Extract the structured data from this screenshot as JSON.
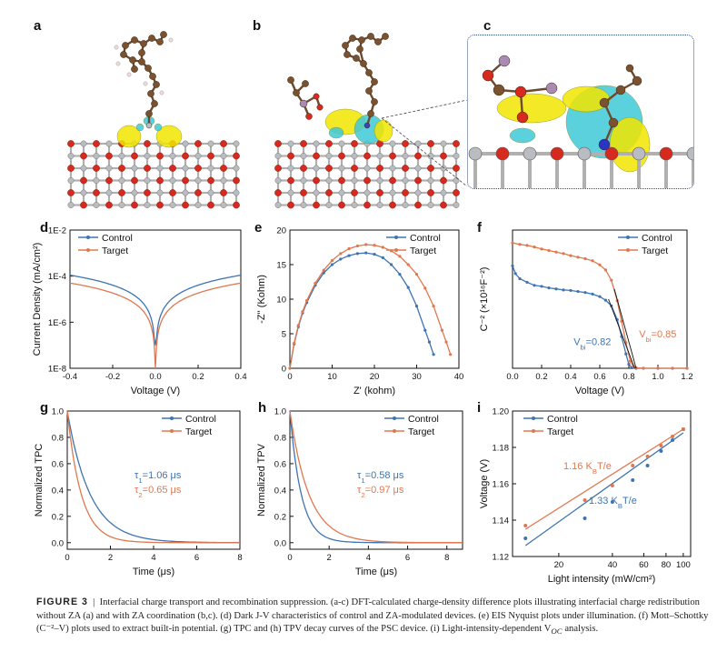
{
  "panels": {
    "a": "a",
    "b": "b",
    "c": "c",
    "d": "d",
    "e": "e",
    "f": "f",
    "g": "g",
    "h": "h",
    "i": "i"
  },
  "colors": {
    "control": "#3e74b3",
    "target": "#e0784f",
    "isosurface_yellow": "#f2e600",
    "isosurface_cyan": "#3fc9d8",
    "oxygen": "#d62a1e",
    "metal": "#b9bcc0"
  },
  "charts": {
    "d": {
      "chart_data": {
        "type": "line",
        "xlabel": "Voltage (V)",
        "ylabel": "Current Density (mA/cm²)",
        "yscale": "log",
        "xlim": [
          -0.4,
          0.4
        ],
        "ylim": [
          1e-08,
          0.01
        ],
        "xticks": [
          "-0.4",
          "-0.2",
          "0.0",
          "0.2",
          "0.4"
        ],
        "yticks": [
          "1E-8",
          "1E-6",
          "1E-4",
          "1E-2"
        ],
        "legend": "top-left",
        "series": [
          {
            "name": "Control",
            "x": [
              -0.4,
              -0.3,
              -0.2,
              -0.1,
              -0.05,
              -0.02,
              -0.005,
              0,
              0.005,
              0.02,
              0.05,
              0.1,
              0.2,
              0.3,
              0.4
            ],
            "y": [
              0.00011,
              7e-05,
              4.5e-05,
              2.5e-05,
              1.5e-05,
              8e-06,
              3e-06,
              1e-07,
              3e-06,
              8e-06,
              1.6e-05,
              2.8e-05,
              5e-05,
              7.5e-05,
              0.00011
            ]
          },
          {
            "name": "Target",
            "x": [
              -0.4,
              -0.3,
              -0.2,
              -0.1,
              -0.05,
              -0.02,
              -0.005,
              0,
              0.005,
              0.02,
              0.05,
              0.1,
              0.2,
              0.3,
              0.4
            ],
            "y": [
              5e-05,
              2.8e-05,
              1.6e-05,
              8e-06,
              4.5e-06,
              2e-06,
              6e-07,
              1e-08,
              6e-07,
              2e-06,
              4.5e-06,
              8e-06,
              1.6e-05,
              2.8e-05,
              5e-05
            ]
          }
        ]
      }
    },
    "e": {
      "chart_data": {
        "type": "line",
        "xlabel": "Z' (kohm)",
        "ylabel": "-Z'' (Kohm)",
        "xlim": [
          0,
          40
        ],
        "ylim": [
          0,
          20
        ],
        "xticks": [
          "0",
          "10",
          "20",
          "30",
          "40"
        ],
        "yticks": [
          "0",
          "5",
          "10",
          "15",
          "20"
        ],
        "legend": "top-right",
        "series": [
          {
            "name": "Control",
            "x": [
              0,
              1,
              2,
              3,
              4,
              6,
              8,
              10,
              12,
              14,
              16,
              18,
              20,
              22,
              24,
              26,
              28,
              30,
              32,
              33,
              34
            ],
            "y": [
              0,
              3.5,
              6,
              8,
              9.5,
              12,
              13.8,
              15,
              15.8,
              16.3,
              16.6,
              16.7,
              16.5,
              16,
              15,
              13.6,
              11.7,
              9,
              5.5,
              3.8,
              2
            ]
          },
          {
            "name": "Target",
            "x": [
              0,
              1,
              2,
              3,
              4,
              6,
              8,
              10,
              12,
              14,
              16,
              18,
              20,
              22,
              24,
              26,
              28,
              30,
              32,
              34,
              36,
              37,
              38
            ],
            "y": [
              0,
              3.6,
              6.2,
              8.2,
              9.8,
              12.3,
              14.2,
              15.6,
              16.6,
              17.3,
              17.7,
              17.9,
              17.8,
              17.5,
              17,
              16.2,
              15,
              13.6,
              11.6,
              9,
              5.5,
              3.8,
              2
            ]
          }
        ]
      }
    },
    "f": {
      "chart_data": {
        "type": "line",
        "xlabel": "Voltage (V)",
        "ylabel": "C⁻² (×10¹⁶F⁻²)",
        "xlim": [
          0,
          1.2
        ],
        "ylim": [
          0,
          2.7
        ],
        "xticks": [
          "0.0",
          "0.2",
          "0.4",
          "0.6",
          "0.8",
          "1.0",
          "1.2"
        ],
        "legend": "top-right",
        "annotations": [
          {
            "text": "V",
            "sub": "bi",
            "value": "=0.82",
            "color": "control"
          },
          {
            "text": "V",
            "sub": "bi",
            "value": "=0.85",
            "color": "target"
          }
        ],
        "series": [
          {
            "name": "Control",
            "x": [
              0,
              0.02,
              0.05,
              0.1,
              0.15,
              0.2,
              0.25,
              0.3,
              0.35,
              0.4,
              0.45,
              0.5,
              0.55,
              0.6,
              0.64,
              0.68,
              0.72,
              0.75,
              0.78,
              0.8,
              0.82,
              0.85,
              0.9,
              1.0,
              1.1,
              1.2
            ],
            "y": [
              2.0,
              1.85,
              1.75,
              1.68,
              1.62,
              1.6,
              1.57,
              1.55,
              1.53,
              1.52,
              1.5,
              1.48,
              1.45,
              1.4,
              1.33,
              1.22,
              0.95,
              0.62,
              0.28,
              0.08,
              0.01,
              0,
              0,
              0,
              0,
              0
            ]
          },
          {
            "name": "Target",
            "x": [
              0,
              0.05,
              0.1,
              0.15,
              0.2,
              0.25,
              0.3,
              0.35,
              0.4,
              0.45,
              0.5,
              0.55,
              0.6,
              0.64,
              0.68,
              0.72,
              0.75,
              0.78,
              0.81,
              0.83,
              0.85,
              0.9,
              1.0,
              1.1,
              1.2
            ],
            "y": [
              2.45,
              2.42,
              2.4,
              2.37,
              2.33,
              2.3,
              2.27,
              2.24,
              2.2,
              2.17,
              2.14,
              2.1,
              2.02,
              1.92,
              1.72,
              1.32,
              0.92,
              0.5,
              0.14,
              0.04,
              0.01,
              0,
              0,
              0,
              0
            ]
          }
        ]
      }
    },
    "g": {
      "chart_data": {
        "type": "line",
        "xlabel": "Time (μs)",
        "ylabel": "Normalized TPC",
        "xlim": [
          0,
          8
        ],
        "ylim": [
          -0.05,
          1.0
        ],
        "xticks": [
          "0",
          "2",
          "4",
          "6",
          "8"
        ],
        "yticks": [
          "0.0",
          "0.2",
          "0.4",
          "0.6",
          "0.8",
          "1.0"
        ],
        "legend": "top-right",
        "annotations": [
          {
            "text": "τ",
            "sub": "1",
            "value": "=1.06 μs",
            "color": "control"
          },
          {
            "text": "τ",
            "sub": "2",
            "value": "=0.65 μs",
            "color": "target"
          }
        ],
        "series": [
          {
            "name": "Control",
            "tau": 1.06
          },
          {
            "name": "Target",
            "tau": 0.65
          }
        ]
      }
    },
    "h": {
      "chart_data": {
        "type": "line",
        "xlabel": "Time (μs)",
        "ylabel": "Normalized TPV",
        "xlim": [
          0,
          8.8
        ],
        "ylim": [
          -0.05,
          1.0
        ],
        "xticks": [
          "0",
          "2",
          "4",
          "6",
          "8"
        ],
        "yticks": [
          "0.0",
          "0.2",
          "0.4",
          "0.6",
          "0.8",
          "1.0"
        ],
        "legend": "top-right",
        "annotations": [
          {
            "text": "τ",
            "sub": "1",
            "value": "=0.58 μs",
            "color": "control"
          },
          {
            "text": "τ",
            "sub": "2",
            "value": "=0.97 μs",
            "color": "target"
          }
        ],
        "series": [
          {
            "name": "Control",
            "tau": 0.58
          },
          {
            "name": "Target",
            "tau": 0.97
          }
        ]
      }
    },
    "i": {
      "chart_data": {
        "type": "scatter",
        "xlabel": "Light intensity (mW/cm²)",
        "ylabel": "Voltage (V)",
        "xscale": "log",
        "xlim": [
          11,
          110
        ],
        "ylim": [
          1.12,
          1.2
        ],
        "xticks": [
          "20",
          "40",
          "60",
          "80",
          "100"
        ],
        "yticks": [
          "1.12",
          "1.14",
          "1.16",
          "1.18",
          "1.20"
        ],
        "legend": "top-left",
        "annotations": [
          {
            "text": "1.16 K",
            "sub": "B",
            "value": "T/e",
            "color": "target"
          },
          {
            "text": "1.33 K",
            "sub": "B",
            "value": "T/e",
            "color": "control"
          }
        ],
        "series": [
          {
            "name": "Control",
            "x": [
              13,
              28,
              40,
              52,
              63,
              75,
              87,
              100
            ],
            "y": [
              1.13,
              1.141,
              1.15,
              1.162,
              1.17,
              1.178,
              1.184,
              1.19
            ],
            "fit": {
              "x": [
                13,
                100
              ],
              "y": [
                1.126,
                1.188
              ]
            }
          },
          {
            "name": "Target",
            "x": [
              13,
              28,
              40,
              52,
              63,
              75,
              87,
              100
            ],
            "y": [
              1.137,
              1.151,
              1.159,
              1.17,
              1.175,
              1.181,
              1.186,
              1.19
            ],
            "fit": {
              "x": [
                13,
                100
              ],
              "y": [
                1.135,
                1.19
              ]
            }
          }
        ]
      }
    }
  },
  "caption": {
    "label": "FIGURE 3",
    "separator": "|",
    "text": "Interfacial charge transport and recombination suppression. (a-c) DFT-calculated charge-density difference plots illustrating interfacial charge redistribution without ZA (a) and with ZA coordination (b,c). (d) Dark J-V characteristics of control and ZA-modulated devices. (e) EIS Nyquist plots under illumination. (f) Mott–Schottky (C⁻²–V) plots used to extract built-in potential. (g) TPC and (h) TPV decay curves of the PSC device. (i) Light-intensity-dependent V",
    "text_sub": "OC",
    "text_end": " analysis."
  }
}
